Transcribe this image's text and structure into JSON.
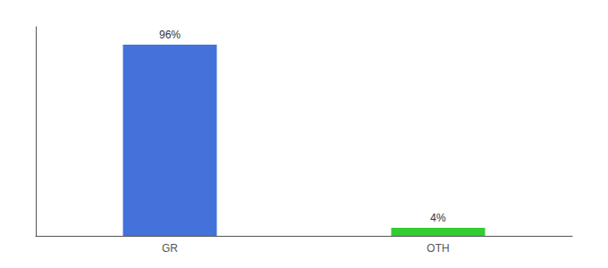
{
  "chart_data": {
    "type": "bar",
    "categories": [
      "GR",
      "OTH"
    ],
    "values": [
      96,
      4
    ],
    "value_labels": [
      "96%",
      "4%"
    ],
    "data_labels": true,
    "colors": [
      "#4472db",
      "#33cc33"
    ],
    "ylim": [
      0,
      105
    ],
    "grid": false,
    "tick_labels": "x"
  }
}
